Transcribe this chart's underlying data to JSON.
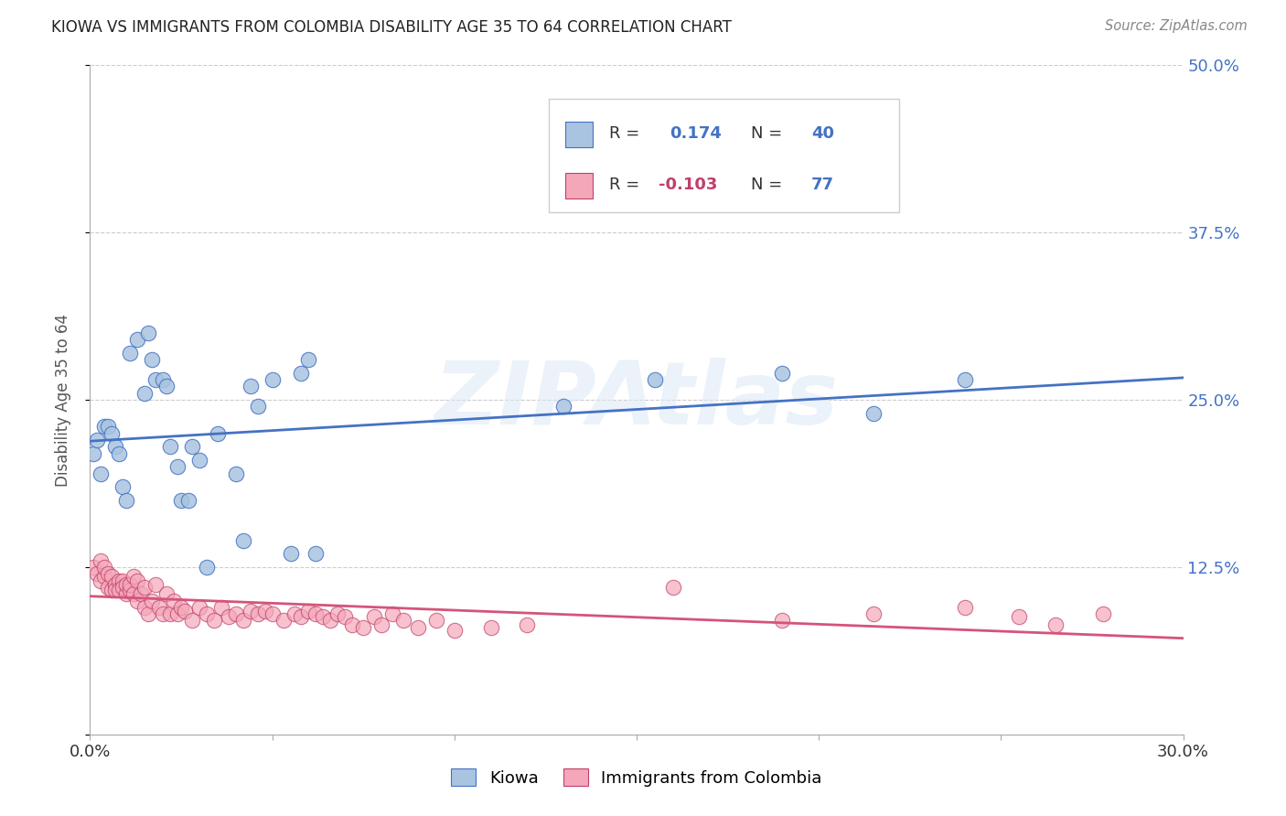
{
  "title": "KIOWA VS IMMIGRANTS FROM COLOMBIA DISABILITY AGE 35 TO 64 CORRELATION CHART",
  "source": "Source: ZipAtlas.com",
  "ylabel": "Disability Age 35 to 64",
  "xlim": [
    0.0,
    0.3
  ],
  "ylim": [
    0.0,
    0.5
  ],
  "yticks": [
    0.0,
    0.125,
    0.25,
    0.375,
    0.5
  ],
  "ytick_labels_right": [
    "",
    "12.5%",
    "25.0%",
    "37.5%",
    "50.0%"
  ],
  "xticks": [
    0.0,
    0.05,
    0.1,
    0.15,
    0.2,
    0.25,
    0.3
  ],
  "kiowa_color": "#a8c4e0",
  "kiowa_edge_color": "#4472c4",
  "colombia_color": "#f4a7b9",
  "colombia_edge_color": "#c0406a",
  "kiowa_line_color": "#4472c4",
  "colombia_line_color": "#d4547a",
  "watermark": "ZIPAtlas",
  "kiowa_R": "0.174",
  "kiowa_N": "40",
  "colombia_R": "-0.103",
  "colombia_N": "77",
  "grid_color": "#cccccc",
  "kiowa_x": [
    0.001,
    0.002,
    0.003,
    0.004,
    0.005,
    0.006,
    0.007,
    0.008,
    0.009,
    0.01,
    0.011,
    0.013,
    0.015,
    0.016,
    0.017,
    0.018,
    0.02,
    0.021,
    0.022,
    0.024,
    0.025,
    0.027,
    0.028,
    0.03,
    0.032,
    0.035,
    0.04,
    0.042,
    0.044,
    0.046,
    0.05,
    0.055,
    0.058,
    0.06,
    0.062,
    0.13,
    0.155,
    0.19,
    0.215,
    0.24
  ],
  "kiowa_y": [
    0.21,
    0.22,
    0.195,
    0.23,
    0.23,
    0.225,
    0.215,
    0.21,
    0.185,
    0.175,
    0.285,
    0.295,
    0.255,
    0.3,
    0.28,
    0.265,
    0.265,
    0.26,
    0.215,
    0.2,
    0.175,
    0.175,
    0.215,
    0.205,
    0.125,
    0.225,
    0.195,
    0.145,
    0.26,
    0.245,
    0.265,
    0.135,
    0.27,
    0.28,
    0.135,
    0.245,
    0.265,
    0.27,
    0.24,
    0.265
  ],
  "colombia_x": [
    0.001,
    0.002,
    0.003,
    0.003,
    0.004,
    0.004,
    0.005,
    0.005,
    0.006,
    0.006,
    0.007,
    0.007,
    0.008,
    0.008,
    0.009,
    0.009,
    0.01,
    0.01,
    0.011,
    0.011,
    0.012,
    0.012,
    0.013,
    0.013,
    0.014,
    0.015,
    0.015,
    0.016,
    0.017,
    0.018,
    0.019,
    0.02,
    0.021,
    0.022,
    0.023,
    0.024,
    0.025,
    0.026,
    0.028,
    0.03,
    0.032,
    0.034,
    0.036,
    0.038,
    0.04,
    0.042,
    0.044,
    0.046,
    0.048,
    0.05,
    0.053,
    0.056,
    0.058,
    0.06,
    0.062,
    0.064,
    0.066,
    0.068,
    0.07,
    0.072,
    0.075,
    0.078,
    0.08,
    0.083,
    0.086,
    0.09,
    0.095,
    0.1,
    0.11,
    0.12,
    0.16,
    0.19,
    0.215,
    0.24,
    0.255,
    0.265,
    0.278
  ],
  "colombia_y": [
    0.125,
    0.12,
    0.115,
    0.13,
    0.118,
    0.125,
    0.11,
    0.12,
    0.108,
    0.118,
    0.112,
    0.108,
    0.115,
    0.108,
    0.115,
    0.11,
    0.105,
    0.112,
    0.108,
    0.112,
    0.105,
    0.118,
    0.1,
    0.115,
    0.105,
    0.095,
    0.11,
    0.09,
    0.1,
    0.112,
    0.095,
    0.09,
    0.105,
    0.09,
    0.1,
    0.09,
    0.095,
    0.092,
    0.085,
    0.095,
    0.09,
    0.085,
    0.095,
    0.088,
    0.09,
    0.085,
    0.092,
    0.09,
    0.092,
    0.09,
    0.085,
    0.09,
    0.088,
    0.092,
    0.09,
    0.088,
    0.085,
    0.09,
    0.088,
    0.082,
    0.08,
    0.088,
    0.082,
    0.09,
    0.085,
    0.08,
    0.085,
    0.078,
    0.08,
    0.082,
    0.11,
    0.085,
    0.09,
    0.095,
    0.088,
    0.082,
    0.09
  ]
}
